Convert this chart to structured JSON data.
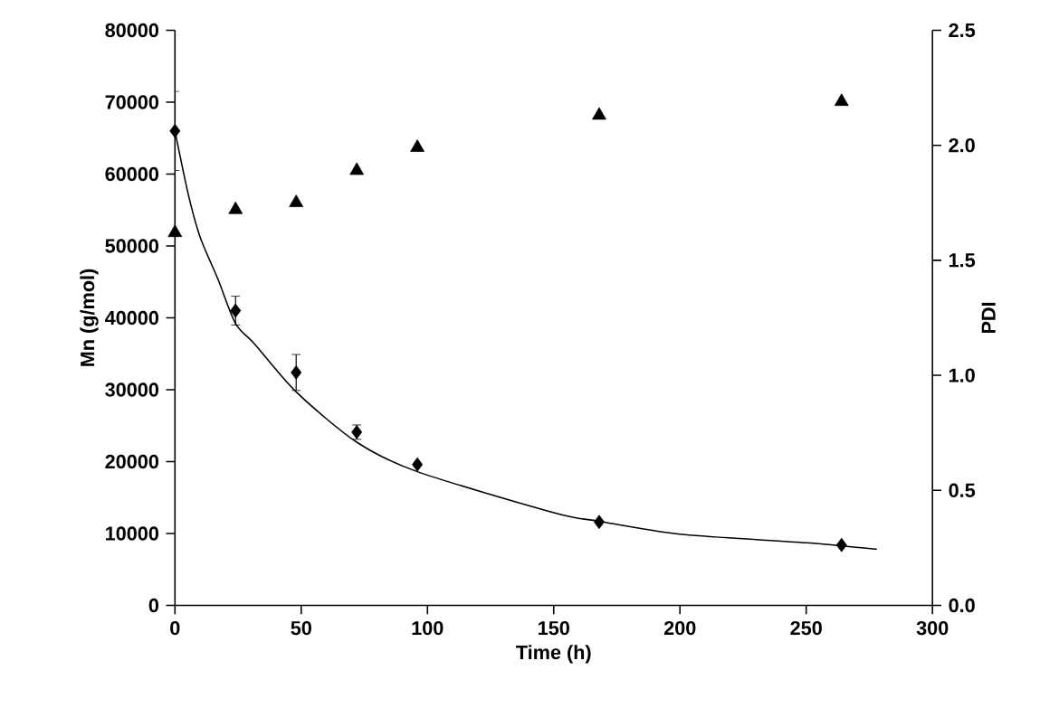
{
  "chart_data": {
    "type": "scatter",
    "xlabel": "Time (h)",
    "ylabel": "Mn (g/mol)",
    "y2label": "PDI",
    "xlim": [
      0,
      300
    ],
    "xticks": [
      0,
      50,
      100,
      150,
      200,
      250,
      300
    ],
    "ylim": [
      0,
      80000
    ],
    "yticks": [
      0,
      10000,
      20000,
      30000,
      40000,
      50000,
      60000,
      70000,
      80000
    ],
    "y2lim": [
      0,
      2.5
    ],
    "y2ticks": [
      {
        "value": 0,
        "label": "0.0"
      },
      {
        "value": 0.5,
        "label": "0.5"
      },
      {
        "value": 1,
        "label": "1.0"
      },
      {
        "value": 1.5,
        "label": "1.5"
      },
      {
        "value": 2,
        "label": "2.0"
      },
      {
        "value": 2.5,
        "label": "2.5"
      }
    ],
    "grid": false,
    "series": [
      {
        "marker": "diamond",
        "color": "#000000",
        "x": [
          0,
          24,
          48,
          72,
          96,
          168,
          264
        ],
        "values": [
          66000,
          41000,
          32400,
          24100,
          19600,
          11600,
          8400
        ],
        "errors": [
          5500,
          2000,
          2500,
          1000,
          null,
          null,
          null
        ]
      },
      {
        "marker": "triangle",
        "axis": "y2",
        "color": "#000000",
        "x": [
          0,
          24,
          48,
          72,
          96,
          168,
          264
        ],
        "values": [
          1.62,
          1.72,
          1.75,
          1.89,
          1.99,
          2.13,
          2.19
        ]
      },
      {
        "type": "line",
        "marker": "none",
        "line_style": "solid",
        "color": "#000000",
        "x": [
          0,
          5.4,
          10,
          17,
          24,
          31.7,
          48,
          72,
          96,
          150,
          168,
          200,
          250,
          278
        ],
        "values": [
          66000,
          57000,
          51200,
          45400,
          39200,
          36300,
          29700,
          22700,
          18600,
          12900,
          11700,
          9900,
          8700,
          7800
        ]
      }
    ]
  }
}
